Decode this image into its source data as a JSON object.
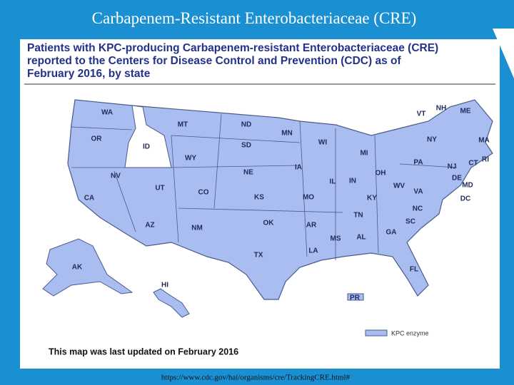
{
  "header": {
    "title": "Carbapenem-Resistant Enterobacteriaceae (CRE)"
  },
  "map": {
    "title_lines": [
      "Patients with KPC-producing Carbapenem-resistant Enterobacteriaceae (CRE)",
      "reported to the Centers for Disease Control and Prevention (CDC) as of",
      "February 2016, by state"
    ],
    "states": [
      "WA",
      "OR",
      "ID",
      "MT",
      "ND",
      "MN",
      "SD",
      "WY",
      "NE",
      "IA",
      "WI",
      "MI",
      "IL",
      "IN",
      "OH",
      "NV",
      "UT",
      "CO",
      "KS",
      "MO",
      "KY",
      "WV",
      "VA",
      "CA",
      "AZ",
      "NM",
      "OK",
      "AR",
      "TN",
      "NC",
      "SC",
      "MS",
      "AL",
      "GA",
      "TX",
      "LA",
      "FL",
      "AK",
      "HI",
      "PR",
      "VT",
      "NH",
      "ME",
      "NY",
      "MA",
      "RI",
      "CT",
      "NJ",
      "PA",
      "DE",
      "MD",
      "DC"
    ],
    "legend": "KPC enzyme",
    "note": "This map was last updated on February 2016"
  },
  "footer": {
    "url": "https://www.cdc.gov/hai/organisms/cre/TrackingCRE.html#"
  }
}
